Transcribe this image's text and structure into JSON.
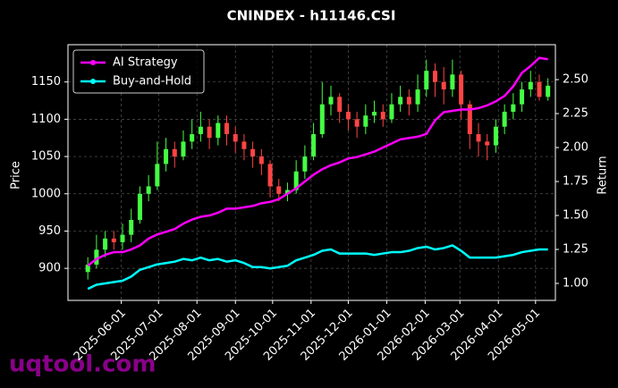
{
  "chart_data": {
    "type": "candlestick",
    "title": "CNINDEX - h11146.CSI",
    "ylabel": "Price",
    "y2label": "Return",
    "watermark": "uqtool.com",
    "x": [
      "2025-05-05",
      "2025-05-12",
      "2025-05-19",
      "2025-05-26",
      "2025-06-02",
      "2025-06-09",
      "2025-06-16",
      "2025-06-23",
      "2025-06-30",
      "2025-07-07",
      "2025-07-14",
      "2025-07-21",
      "2025-07-28",
      "2025-08-04",
      "2025-08-11",
      "2025-08-18",
      "2025-08-25",
      "2025-09-01",
      "2025-09-08",
      "2025-09-15",
      "2025-09-22",
      "2025-09-29",
      "2025-10-06",
      "2025-10-13",
      "2025-10-20",
      "2025-10-27",
      "2025-11-03",
      "2025-11-10",
      "2025-11-17",
      "2025-11-24",
      "2025-12-01",
      "2025-12-08",
      "2025-12-15",
      "2025-12-22",
      "2025-12-29",
      "2026-01-05",
      "2026-01-12",
      "2026-01-19",
      "2026-01-26",
      "2026-02-02",
      "2026-02-09",
      "2026-02-16",
      "2026-02-23",
      "2026-03-02",
      "2026-03-09",
      "2026-03-16",
      "2026-03-23",
      "2026-03-30",
      "2026-04-06",
      "2026-04-13",
      "2026-04-20",
      "2026-04-27",
      "2026-05-04",
      "2026-05-11"
    ],
    "open": [
      895,
      905,
      925,
      940,
      935,
      945,
      965,
      1000,
      1010,
      1040,
      1060,
      1050,
      1070,
      1080,
      1090,
      1075,
      1095,
      1080,
      1070,
      1060,
      1050,
      1040,
      1010,
      1000,
      1005,
      1030,
      1050,
      1080,
      1120,
      1130,
      1110,
      1100,
      1090,
      1105,
      1110,
      1100,
      1120,
      1130,
      1120,
      1140,
      1165,
      1150,
      1140,
      1160,
      1120,
      1080,
      1070,
      1065,
      1090,
      1110,
      1120,
      1140,
      1150,
      1130
    ],
    "high": [
      915,
      945,
      950,
      950,
      960,
      980,
      1010,
      1025,
      1070,
      1075,
      1070,
      1085,
      1100,
      1110,
      1100,
      1105,
      1105,
      1090,
      1080,
      1070,
      1060,
      1045,
      1020,
      1015,
      1045,
      1065,
      1095,
      1150,
      1145,
      1135,
      1120,
      1110,
      1120,
      1125,
      1120,
      1135,
      1145,
      1140,
      1160,
      1180,
      1175,
      1170,
      1180,
      1165,
      1125,
      1095,
      1080,
      1100,
      1120,
      1135,
      1150,
      1165,
      1160,
      1155
    ],
    "low": [
      885,
      900,
      915,
      925,
      925,
      935,
      960,
      990,
      1005,
      1030,
      1035,
      1045,
      1060,
      1070,
      1060,
      1065,
      1065,
      1055,
      1045,
      1035,
      1025,
      995,
      990,
      990,
      1000,
      1020,
      1045,
      1075,
      1105,
      1095,
      1085,
      1075,
      1080,
      1095,
      1090,
      1095,
      1110,
      1105,
      1110,
      1130,
      1130,
      1120,
      1130,
      1100,
      1060,
      1050,
      1045,
      1055,
      1080,
      1100,
      1110,
      1130,
      1125,
      1125
    ],
    "close": [
      905,
      925,
      940,
      935,
      945,
      965,
      1000,
      1010,
      1040,
      1060,
      1050,
      1070,
      1080,
      1090,
      1075,
      1095,
      1080,
      1070,
      1060,
      1050,
      1040,
      1010,
      1000,
      1005,
      1030,
      1050,
      1080,
      1120,
      1130,
      1110,
      1100,
      1090,
      1105,
      1110,
      1100,
      1120,
      1130,
      1120,
      1140,
      1165,
      1150,
      1140,
      1160,
      1120,
      1080,
      1070,
      1065,
      1090,
      1110,
      1120,
      1140,
      1150,
      1130,
      1145
    ],
    "up_color": "#44ff44",
    "down_color": "#ff4444",
    "series": [
      {
        "name": "AI Strategy",
        "color": "#ff00ff",
        "axis": "y2",
        "values": [
          1.13,
          1.18,
          1.21,
          1.23,
          1.23,
          1.25,
          1.28,
          1.33,
          1.36,
          1.38,
          1.4,
          1.44,
          1.47,
          1.49,
          1.5,
          1.52,
          1.55,
          1.55,
          1.56,
          1.57,
          1.59,
          1.6,
          1.62,
          1.66,
          1.7,
          1.75,
          1.8,
          1.84,
          1.87,
          1.89,
          1.92,
          1.93,
          1.95,
          1.97,
          2.0,
          2.03,
          2.06,
          2.07,
          2.08,
          2.1,
          2.2,
          2.26,
          2.27,
          2.28,
          2.28,
          2.29,
          2.31,
          2.34,
          2.38,
          2.45,
          2.55,
          2.6,
          2.66,
          2.65
        ]
      },
      {
        "name": "Buy-and-Hold",
        "color": "#00ffff",
        "axis": "y2",
        "values": [
          0.96,
          0.99,
          1.0,
          1.01,
          1.02,
          1.05,
          1.1,
          1.12,
          1.14,
          1.15,
          1.16,
          1.18,
          1.17,
          1.19,
          1.17,
          1.18,
          1.16,
          1.17,
          1.15,
          1.12,
          1.12,
          1.11,
          1.12,
          1.13,
          1.17,
          1.19,
          1.21,
          1.24,
          1.25,
          1.22,
          1.22,
          1.22,
          1.22,
          1.21,
          1.22,
          1.23,
          1.23,
          1.24,
          1.26,
          1.27,
          1.25,
          1.26,
          1.28,
          1.24,
          1.19,
          1.19,
          1.19,
          1.19,
          1.2,
          1.21,
          1.23,
          1.24,
          1.25,
          1.25
        ]
      }
    ],
    "xlim": [
      "2025-04-19",
      "2026-05-17"
    ],
    "xticks": [
      "2025-06-01",
      "2025-07-01",
      "2025-08-01",
      "2025-09-01",
      "2025-10-01",
      "2025-11-01",
      "2025-12-01",
      "2026-01-01",
      "2026-02-01",
      "2026-03-01",
      "2026-04-01",
      "2026-05-01"
    ],
    "ylim": [
      857,
      1200
    ],
    "yticks": [
      900,
      950,
      1000,
      1050,
      1100,
      1150
    ],
    "y2lim": [
      0.875,
      2.757
    ],
    "y2ticks": [
      {
        "value": 1,
        "label": "1.00"
      },
      {
        "value": 1.25,
        "label": "1.25"
      },
      {
        "value": 1.5,
        "label": "1.50"
      },
      {
        "value": 1.75,
        "label": "1.75"
      },
      {
        "value": 2,
        "label": "2.00"
      },
      {
        "value": 2.25,
        "label": "2.25"
      },
      {
        "value": 2.5,
        "label": "2.50"
      }
    ],
    "grid": true,
    "legend": "upper left"
  }
}
